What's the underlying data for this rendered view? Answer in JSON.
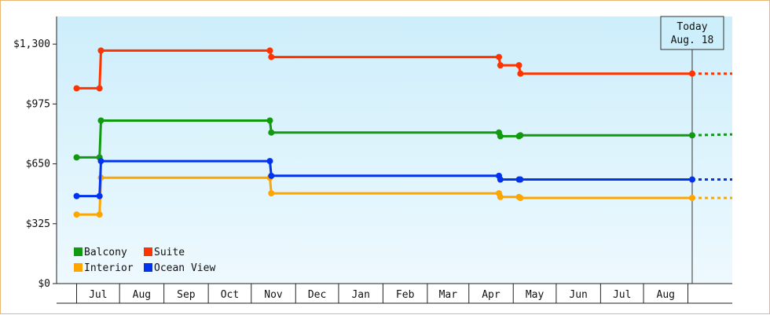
{
  "colors": {
    "balcony": "#109a10",
    "suite": "#ff3300",
    "interior": "#ffa500",
    "ocean_view": "#0033ee",
    "plot_top": "#cdeefb",
    "plot_bottom": "#eef9fe",
    "frame_border": "#e8b878"
  },
  "today_marker": {
    "line1": "Today",
    "line2": "Aug. 18"
  },
  "chart_data": {
    "type": "line",
    "step": true,
    "title": "",
    "xlabel": "",
    "ylabel": "",
    "x_axis": {
      "type": "date",
      "range": [
        "2023-06-01",
        "2024-09-15"
      ],
      "months": [
        "Jul",
        "Aug",
        "Sep",
        "Oct",
        "Nov",
        "Dec",
        "Jan",
        "Feb",
        "Mar",
        "Apr",
        "May",
        "Jun",
        "Jul",
        "Aug"
      ],
      "month_starts": [
        "2023-06-15",
        "2023-07-15",
        "2023-08-15",
        "2023-09-15",
        "2023-10-15",
        "2023-11-15",
        "2023-12-15",
        "2024-01-15",
        "2024-02-15",
        "2024-03-15",
        "2024-04-15",
        "2024-05-15",
        "2024-06-15",
        "2024-07-15",
        "2024-08-15"
      ]
    },
    "y_axis": {
      "range": [
        0,
        1450
      ],
      "ticks": [
        0,
        325,
        650,
        975,
        1300
      ],
      "tick_labels": [
        "$0",
        "$325",
        "$650",
        "$975",
        "$1,300"
      ]
    },
    "grid": false,
    "legend": {
      "position": "bottom-left"
    },
    "today": "2024-08-18",
    "series": [
      {
        "name": "Balcony",
        "color_key": "balcony",
        "points": [
          [
            "2023-06-15",
            685
          ],
          [
            "2023-07-01",
            685
          ],
          [
            "2023-07-02",
            885
          ],
          [
            "2023-10-28",
            885
          ],
          [
            "2023-10-29",
            820
          ],
          [
            "2024-04-05",
            820
          ],
          [
            "2024-04-06",
            800
          ],
          [
            "2024-04-19",
            800
          ],
          [
            "2024-04-20",
            805
          ],
          [
            "2024-08-18",
            805
          ]
        ],
        "projected_end": [
          "2024-09-15",
          810
        ]
      },
      {
        "name": "Suite",
        "color_key": "suite",
        "points": [
          [
            "2023-06-15",
            1060
          ],
          [
            "2023-07-01",
            1060
          ],
          [
            "2023-07-02",
            1265
          ],
          [
            "2023-10-28",
            1265
          ],
          [
            "2023-10-29",
            1230
          ],
          [
            "2024-04-05",
            1230
          ],
          [
            "2024-04-06",
            1185
          ],
          [
            "2024-04-19",
            1185
          ],
          [
            "2024-04-20",
            1140
          ],
          [
            "2024-08-18",
            1140
          ]
        ],
        "projected_end": [
          "2024-09-15",
          1140
        ]
      },
      {
        "name": "Interior",
        "color_key": "interior",
        "points": [
          [
            "2023-06-15",
            375
          ],
          [
            "2023-07-01",
            375
          ],
          [
            "2023-07-02",
            575
          ],
          [
            "2023-10-28",
            575
          ],
          [
            "2023-10-29",
            490
          ],
          [
            "2024-04-05",
            490
          ],
          [
            "2024-04-06",
            470
          ],
          [
            "2024-04-19",
            470
          ],
          [
            "2024-04-20",
            465
          ],
          [
            "2024-08-18",
            465
          ]
        ],
        "projected_end": [
          "2024-09-15",
          465
        ]
      },
      {
        "name": "Ocean View",
        "color_key": "ocean_view",
        "points": [
          [
            "2023-06-15",
            475
          ],
          [
            "2023-07-01",
            475
          ],
          [
            "2023-07-02",
            665
          ],
          [
            "2023-10-28",
            665
          ],
          [
            "2023-10-29",
            585
          ],
          [
            "2024-04-05",
            585
          ],
          [
            "2024-04-06",
            565
          ],
          [
            "2024-04-19",
            565
          ],
          [
            "2024-04-20",
            565
          ],
          [
            "2024-08-18",
            565
          ]
        ],
        "projected_end": [
          "2024-09-15",
          565
        ]
      }
    ]
  }
}
